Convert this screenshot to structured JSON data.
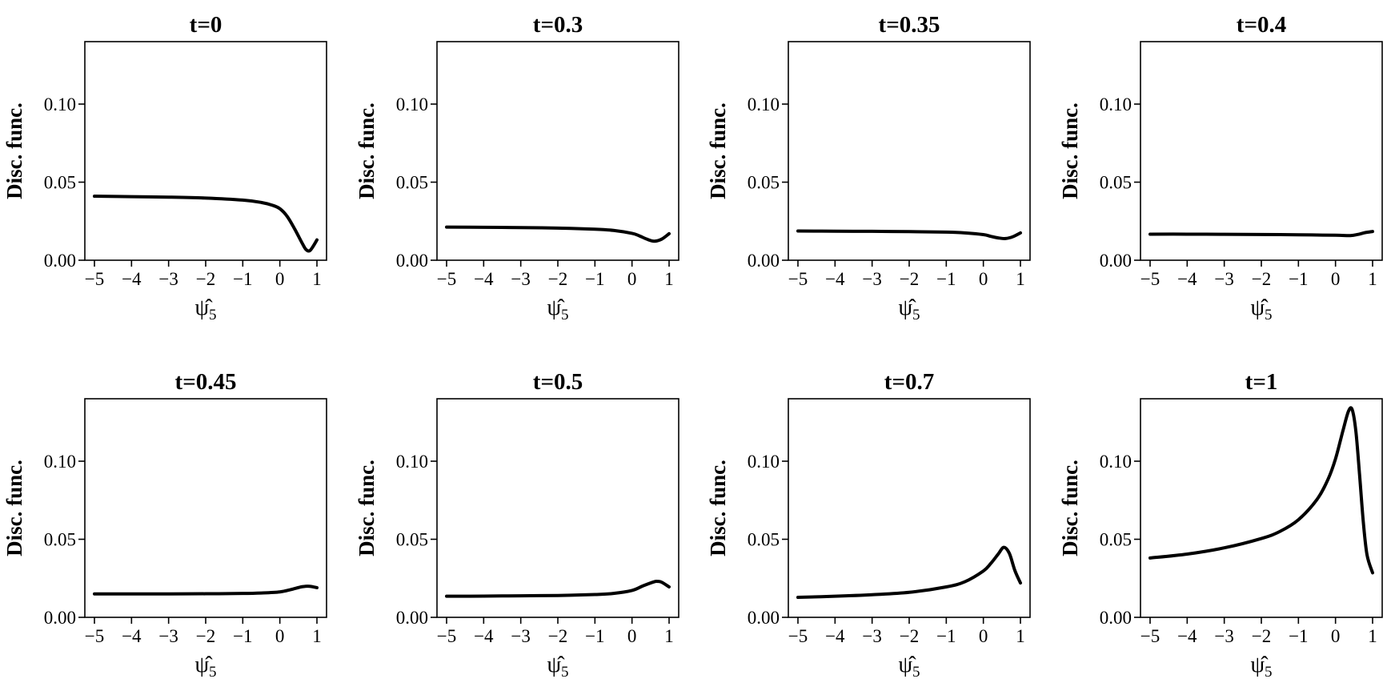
{
  "chart_data": [
    {
      "type": "line",
      "title": "t=0",
      "xlabel": "ψ̂5",
      "ylabel": "Disc. func.",
      "xlim": [
        -5,
        1
      ],
      "ylim": [
        0,
        0.14
      ],
      "xticks": [
        "−5",
        "−4",
        "−3",
        "−2",
        "−1",
        "0",
        "1"
      ],
      "yticks": [
        "0.00",
        "0.05",
        "0.10"
      ],
      "x": [
        -5,
        -4,
        -3,
        -2,
        -1,
        -0.5,
        -0.2,
        0,
        0.2,
        0.4,
        0.6,
        0.7,
        0.8,
        0.9,
        1
      ],
      "y": [
        0.041,
        0.0407,
        0.0404,
        0.0398,
        0.0385,
        0.037,
        0.0352,
        0.033,
        0.028,
        0.02,
        0.011,
        0.007,
        0.006,
        0.009,
        0.013
      ]
    },
    {
      "type": "line",
      "title": "t=0.3",
      "xlabel": "ψ̂5",
      "ylabel": "Disc. func.",
      "xlim": [
        -5,
        1
      ],
      "ylim": [
        0,
        0.14
      ],
      "xticks": [
        "−5",
        "−4",
        "−3",
        "−2",
        "−1",
        "0",
        "1"
      ],
      "yticks": [
        "0.00",
        "0.05",
        "0.10"
      ],
      "x": [
        -5,
        -4,
        -3,
        -2,
        -1,
        -0.5,
        0,
        0.2,
        0.4,
        0.6,
        0.8,
        1
      ],
      "y": [
        0.0212,
        0.0211,
        0.0209,
        0.0206,
        0.0199,
        0.0191,
        0.0172,
        0.0156,
        0.0135,
        0.0122,
        0.0135,
        0.017
      ]
    },
    {
      "type": "line",
      "title": "t=0.35",
      "xlabel": "ψ̂5",
      "ylabel": "Disc. func.",
      "xlim": [
        -5,
        1
      ],
      "ylim": [
        0,
        0.14
      ],
      "xticks": [
        "−5",
        "−4",
        "−3",
        "−2",
        "−1",
        "0",
        "1"
      ],
      "yticks": [
        "0.00",
        "0.05",
        "0.10"
      ],
      "x": [
        -5,
        -4,
        -3,
        -2,
        -1,
        -0.5,
        0,
        0.2,
        0.4,
        0.6,
        0.8,
        1
      ],
      "y": [
        0.0187,
        0.0186,
        0.0185,
        0.0183,
        0.018,
        0.0175,
        0.0164,
        0.0153,
        0.0143,
        0.0139,
        0.0151,
        0.0175
      ]
    },
    {
      "type": "line",
      "title": "t=0.4",
      "xlabel": "ψ̂5",
      "ylabel": "Disc. func.",
      "xlim": [
        -5,
        1
      ],
      "ylim": [
        0,
        0.14
      ],
      "xticks": [
        "−5",
        "−4",
        "−3",
        "−2",
        "−1",
        "0",
        "1"
      ],
      "yticks": [
        "0.00",
        "0.05",
        "0.10"
      ],
      "x": [
        -5,
        -4,
        -3,
        -2,
        -1,
        0,
        0.4,
        0.6,
        0.8,
        1
      ],
      "y": [
        0.0167,
        0.0167,
        0.0166,
        0.0165,
        0.0163,
        0.016,
        0.0158,
        0.0165,
        0.0177,
        0.0184
      ]
    },
    {
      "type": "line",
      "title": "t=0.45",
      "xlabel": "ψ̂5",
      "ylabel": "Disc. func.",
      "xlim": [
        -5,
        1
      ],
      "ylim": [
        0,
        0.14
      ],
      "xticks": [
        "−5",
        "−4",
        "−3",
        "−2",
        "−1",
        "0",
        "1"
      ],
      "yticks": [
        "0.00",
        "0.05",
        "0.10"
      ],
      "x": [
        -5,
        -4,
        -3,
        -2,
        -1,
        -0.5,
        0,
        0.3,
        0.6,
        0.8,
        1
      ],
      "y": [
        0.015,
        0.015,
        0.015,
        0.0151,
        0.0153,
        0.0156,
        0.0163,
        0.0178,
        0.0196,
        0.0199,
        0.019
      ]
    },
    {
      "type": "line",
      "title": "t=0.5",
      "xlabel": "ψ̂5",
      "ylabel": "Disc. func.",
      "xlim": [
        -5,
        1
      ],
      "ylim": [
        0,
        0.14
      ],
      "xticks": [
        "−5",
        "−4",
        "−3",
        "−2",
        "−1",
        "0",
        "1"
      ],
      "yticks": [
        "0.00",
        "0.05",
        "0.10"
      ],
      "x": [
        -5,
        -4,
        -3,
        -2,
        -1,
        -0.5,
        0,
        0.3,
        0.6,
        0.7,
        0.8,
        1
      ],
      "y": [
        0.0135,
        0.0136,
        0.0138,
        0.014,
        0.0146,
        0.0153,
        0.0172,
        0.0202,
        0.0228,
        0.023,
        0.0225,
        0.0195
      ]
    },
    {
      "type": "line",
      "title": "t=0.7",
      "xlabel": "ψ̂5",
      "ylabel": "Disc. func.",
      "xlim": [
        -5,
        1
      ],
      "ylim": [
        0,
        0.14
      ],
      "xticks": [
        "−5",
        "−4",
        "−3",
        "−2",
        "−1",
        "0",
        "1"
      ],
      "yticks": [
        "0.00",
        "0.05",
        "0.10"
      ],
      "x": [
        -5,
        -4,
        -3,
        -2,
        -1,
        -0.5,
        0,
        0.2,
        0.4,
        0.55,
        0.7,
        0.85,
        1
      ],
      "y": [
        0.0128,
        0.0135,
        0.0145,
        0.016,
        0.0195,
        0.0228,
        0.0297,
        0.0345,
        0.0405,
        0.0448,
        0.041,
        0.03,
        0.022
      ]
    },
    {
      "type": "line",
      "title": "t=1",
      "xlabel": "ψ̂5",
      "ylabel": "Disc. func.",
      "xlim": [
        -5,
        1
      ],
      "ylim": [
        0,
        0.14
      ],
      "xticks": [
        "−5",
        "−4",
        "−3",
        "−2",
        "−1",
        "0",
        "1"
      ],
      "yticks": [
        "0.00",
        "0.05",
        "0.10"
      ],
      "x": [
        -5,
        -4,
        -3,
        -2,
        -1.5,
        -1,
        -0.5,
        -0.2,
        0,
        0.2,
        0.35,
        0.45,
        0.55,
        0.65,
        0.75,
        0.85,
        1
      ],
      "y": [
        0.038,
        0.0405,
        0.0445,
        0.0505,
        0.055,
        0.0625,
        0.0755,
        0.0885,
        0.1015,
        0.1195,
        0.132,
        0.133,
        0.119,
        0.091,
        0.061,
        0.04,
        0.0285
      ]
    }
  ]
}
